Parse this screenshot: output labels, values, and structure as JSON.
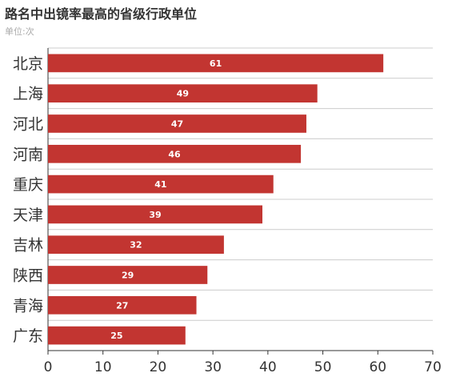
{
  "chart_data": {
    "type": "bar",
    "orientation": "horizontal",
    "title": "路名中出镜率最高的省级行政单位",
    "subtitle": "单位:次",
    "categories": [
      "北京",
      "上海",
      "河北",
      "河南",
      "重庆",
      "天津",
      "吉林",
      "陕西",
      "青海",
      "广东"
    ],
    "values": [
      61,
      49,
      47,
      46,
      41,
      39,
      32,
      29,
      27,
      25
    ],
    "xlim": [
      0,
      70
    ],
    "xticks": [
      0,
      10,
      20,
      30,
      40,
      50,
      60,
      70
    ],
    "grid": "horizontal separators between categories",
    "bar_color": "#c23531",
    "data_labels": true
  }
}
